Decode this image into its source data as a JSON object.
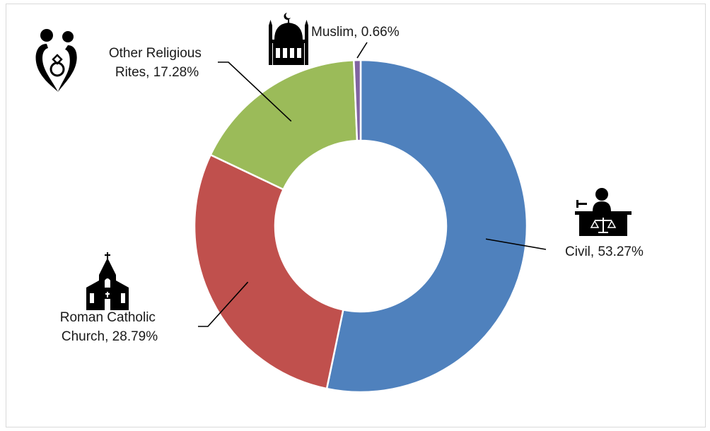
{
  "chart_data": {
    "type": "pie",
    "donut": true,
    "title": "",
    "categories": [
      "Civil",
      "Roman Catholic Church",
      "Other Religious Rites",
      "Muslim"
    ],
    "values": [
      53.27,
      28.79,
      17.28,
      0.66
    ],
    "unit": "%",
    "colors": [
      "#4f81bd",
      "#c0504d",
      "#9bbb59",
      "#8064a2"
    ],
    "labels": [
      {
        "lines": [
          "Civil, 53.27%"
        ],
        "icon": "judge-icon"
      },
      {
        "lines": [
          "Roman Catholic",
          "Church, 28.79%"
        ],
        "icon": "church-icon"
      },
      {
        "lines": [
          "Other Religious",
          "Rites, 17.28%"
        ],
        "icon": "couple-ring-icon"
      },
      {
        "lines": [
          "Muslim, 0.66%"
        ],
        "icon": "mosque-icon"
      }
    ],
    "legend": "none"
  }
}
